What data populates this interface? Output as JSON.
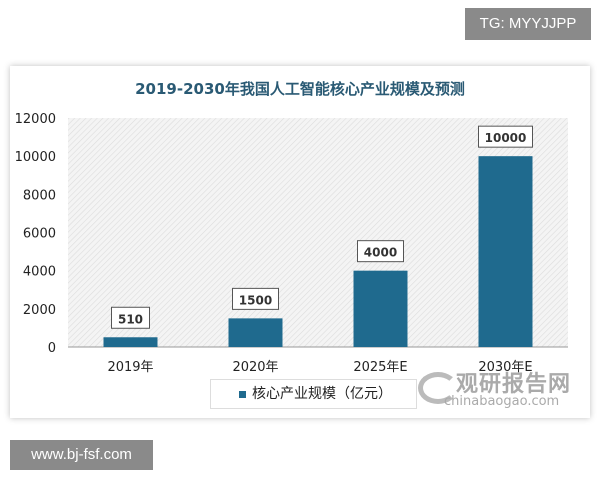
{
  "overlay_top": "TG: MYYJJPP",
  "overlay_bottom": "www.bj-fsf.com",
  "watermark": {
    "cn": "观研报告网",
    "en": "chinabaogao.com"
  },
  "chart_data": {
    "type": "bar",
    "title": "2019-2030年我国人工智能核心产业规模及预测",
    "categories": [
      "2019年",
      "2020年",
      "2025年E",
      "2030年E"
    ],
    "series": [
      {
        "name": "核心产业规模（亿元）",
        "values": [
          510,
          1500,
          4000,
          10000
        ]
      }
    ],
    "data_labels": [
      "510",
      "1500",
      "4000",
      "10000"
    ],
    "ylim": [
      0,
      12000
    ],
    "yticks": [
      "0",
      "2000",
      "4000",
      "6000",
      "8000",
      "10000",
      "12000"
    ],
    "legend": "bottom",
    "bar_color": "#1f6a8e",
    "plot_background": "hatched light gray"
  }
}
